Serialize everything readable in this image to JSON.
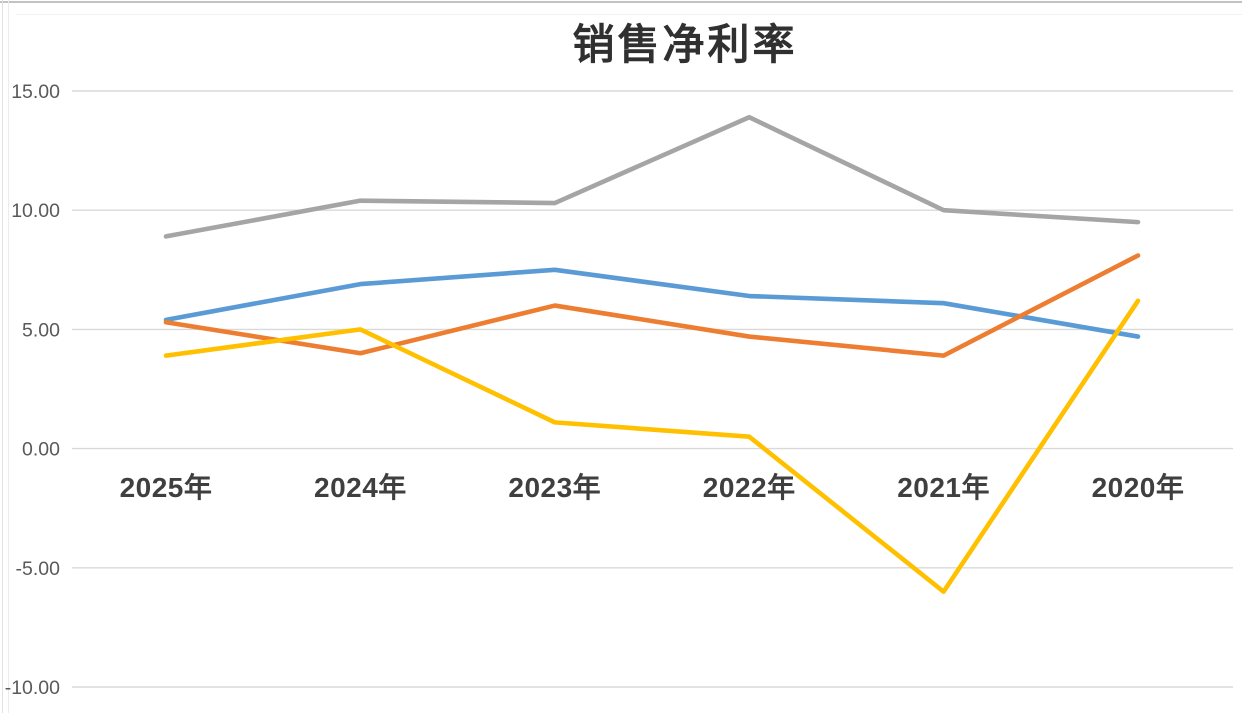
{
  "title": "销售净利率",
  "colors": {
    "grid": "#D9D9D9",
    "axis_text": "#595959",
    "category_text": "#3F3F3F",
    "title_text": "#303030",
    "series_blue": "#5B9BD5",
    "series_orange": "#ED7D31",
    "series_gray": "#A5A5A5",
    "series_yellow": "#FFC000"
  },
  "chart_data": {
    "type": "line",
    "title": "销售净利率",
    "xlabel": "",
    "ylabel": "",
    "categories": [
      "2025年",
      "2024年",
      "2023年",
      "2022年",
      "2021年",
      "2020年"
    ],
    "series": [
      {
        "name": "blue",
        "color": "#5B9BD5",
        "values": [
          5.4,
          6.9,
          7.5,
          6.4,
          6.1,
          4.7
        ]
      },
      {
        "name": "orange",
        "color": "#ED7D31",
        "values": [
          5.3,
          4.0,
          6.0,
          4.7,
          3.9,
          8.1
        ]
      },
      {
        "name": "gray",
        "color": "#A5A5A5",
        "values": [
          8.9,
          10.4,
          10.3,
          13.9,
          10.0,
          9.5
        ]
      },
      {
        "name": "yellow",
        "color": "#FFC000",
        "values": [
          3.9,
          5.0,
          1.1,
          0.5,
          -6.0,
          6.2
        ]
      }
    ],
    "ylim": [
      -10,
      15
    ],
    "ytick_step": 5,
    "ytick_labels": [
      "15.00",
      "10.00",
      "5.00",
      "0.00",
      "-5.00",
      "-10.00"
    ],
    "grid": true,
    "legend": "none"
  }
}
